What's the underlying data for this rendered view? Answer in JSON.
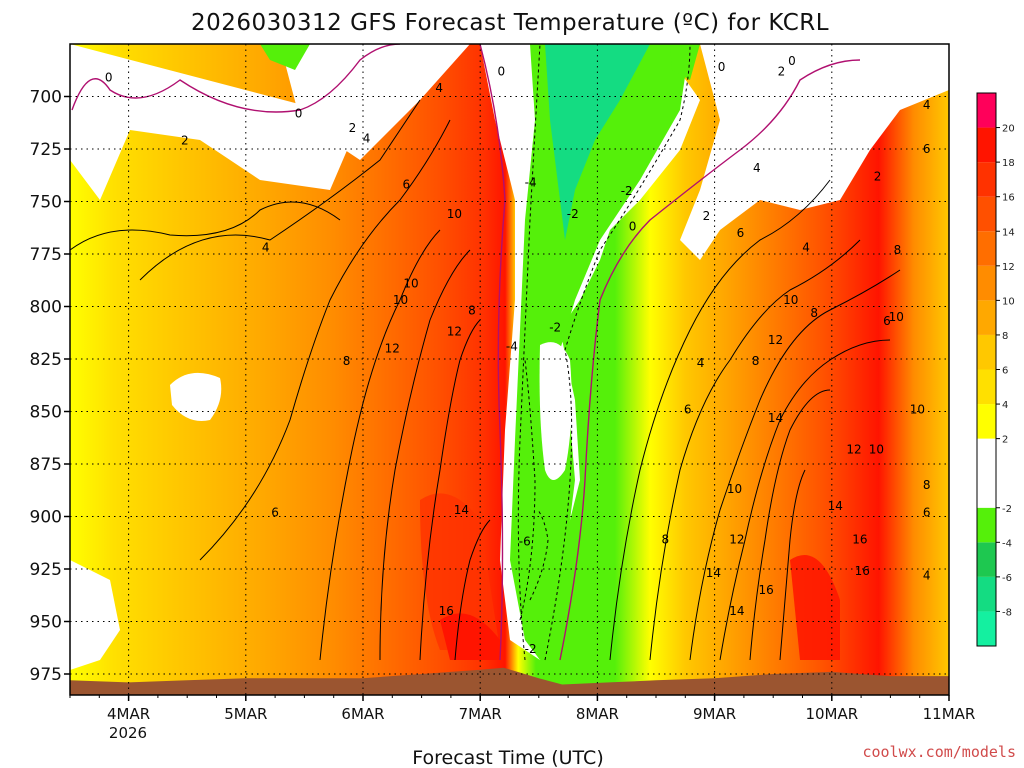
{
  "chart_data": {
    "type": "heatmap",
    "title": "2026030312 GFS Forecast Temperature (ºC) for KCRL",
    "xlabel": "Forecast Time (UTC)",
    "ylabel": "",
    "credit": "coolwx.com/models",
    "y_axis": {
      "units": "hPa",
      "range": [
        675,
        985
      ],
      "ticks": [
        "700",
        "725",
        "750",
        "775",
        "800",
        "825",
        "850",
        "875",
        "900",
        "925",
        "950",
        "975"
      ]
    },
    "x_axis": {
      "units": "days from 2026-03-03 12Z",
      "range": [
        0,
        7.5
      ],
      "ticks": [
        "4MAR",
        "5MAR",
        "6MAR",
        "7MAR",
        "8MAR",
        "9MAR",
        "10MAR",
        "11MAR"
      ],
      "tick_days": [
        0.5,
        1.5,
        2.5,
        3.5,
        4.5,
        5.5,
        6.5,
        7.5
      ],
      "year_label": "2026"
    },
    "colorbar": {
      "units": "ºC",
      "levels": [
        -10,
        -8,
        -6,
        -4,
        -2,
        2,
        4,
        6,
        8,
        10,
        12,
        14,
        16,
        18,
        20,
        22
      ],
      "tick_labels": [
        "20",
        "18",
        "16",
        "14",
        "12",
        "10",
        "8",
        "6",
        "4",
        "2",
        "-2",
        "-4",
        "-6",
        "-8"
      ],
      "tick_values": [
        20,
        18,
        16,
        14,
        12,
        10,
        8,
        6,
        4,
        2,
        -2,
        -4,
        -6,
        -8
      ],
      "colors": [
        "#14f0a0",
        "#14dc82",
        "#1ec850",
        "#55f00a",
        "#ffffff",
        "#ffff00",
        "#ffe000",
        "#ffc800",
        "#ffa800",
        "#ff8c00",
        "#ff6e00",
        "#ff5000",
        "#ff3200",
        "#ff1400",
        "#ff005a"
      ]
    },
    "terrain_color": "#9b5530",
    "contour_labels": [
      {
        "t": 0.33,
        "p": 691,
        "v": "0"
      },
      {
        "t": 1.95,
        "p": 708,
        "v": "0"
      },
      {
        "t": 3.68,
        "p": 688,
        "v": "0"
      },
      {
        "t": 5.56,
        "p": 686,
        "v": "0"
      },
      {
        "t": 6.16,
        "p": 683,
        "v": "0"
      },
      {
        "t": 4.8,
        "p": 762,
        "v": "0"
      },
      {
        "t": 0.98,
        "p": 721,
        "v": "2"
      },
      {
        "t": 2.41,
        "p": 715,
        "v": "2"
      },
      {
        "t": 6.07,
        "p": 688,
        "v": "2"
      },
      {
        "t": 5.43,
        "p": 757,
        "v": "2"
      },
      {
        "t": 6.89,
        "p": 738,
        "v": "2"
      },
      {
        "t": 4.14,
        "p": 810,
        "v": "-2"
      },
      {
        "t": 4.29,
        "p": 756,
        "v": "-2"
      },
      {
        "t": 4.75,
        "p": 745,
        "v": "-2"
      },
      {
        "t": 3.93,
        "p": 963,
        "v": "-2"
      },
      {
        "t": 3.93,
        "p": 741,
        "v": "-4"
      },
      {
        "t": 3.77,
        "p": 819,
        "v": "-4"
      },
      {
        "t": 3.88,
        "p": 912,
        "v": "-6"
      },
      {
        "t": 3.15,
        "p": 696,
        "v": "4"
      },
      {
        "t": 2.53,
        "p": 720,
        "v": "4"
      },
      {
        "t": 1.67,
        "p": 772,
        "v": "4"
      },
      {
        "t": 5.86,
        "p": 734,
        "v": "4"
      },
      {
        "t": 6.28,
        "p": 772,
        "v": "4"
      },
      {
        "t": 5.38,
        "p": 827,
        "v": "4"
      },
      {
        "t": 7.31,
        "p": 704,
        "v": "4"
      },
      {
        "t": 7.31,
        "p": 928,
        "v": "4"
      },
      {
        "t": 2.87,
        "p": 742,
        "v": "6"
      },
      {
        "t": 5.72,
        "p": 765,
        "v": "6"
      },
      {
        "t": 7.31,
        "p": 725,
        "v": "6"
      },
      {
        "t": 5.27,
        "p": 849,
        "v": "6"
      },
      {
        "t": 1.75,
        "p": 898,
        "v": "6"
      },
      {
        "t": 7.31,
        "p": 898,
        "v": "6"
      },
      {
        "t": 3.28,
        "p": 756,
        "v": "10"
      },
      {
        "t": 2.91,
        "p": 789,
        "v": "10"
      },
      {
        "t": 2.82,
        "p": 797,
        "v": "10"
      },
      {
        "t": 6.15,
        "p": 797,
        "v": "10"
      },
      {
        "t": 7.05,
        "p": 805,
        "v": "10"
      },
      {
        "t": 5.67,
        "p": 887,
        "v": "10"
      },
      {
        "t": 6.88,
        "p": 868,
        "v": "10"
      },
      {
        "t": 7.23,
        "p": 849,
        "v": "10"
      },
      {
        "t": 3.43,
        "p": 802,
        "v": "8"
      },
      {
        "t": 6.35,
        "p": 803,
        "v": "8"
      },
      {
        "t": 7.06,
        "p": 773,
        "v": "8"
      },
      {
        "t": 2.36,
        "p": 826,
        "v": "8"
      },
      {
        "t": 5.85,
        "p": 826,
        "v": "8"
      },
      {
        "t": 7.31,
        "p": 885,
        "v": "8"
      },
      {
        "t": 5.08,
        "p": 911,
        "v": "8"
      },
      {
        "t": 3.28,
        "p": 812,
        "v": "12"
      },
      {
        "t": 2.75,
        "p": 820,
        "v": "12"
      },
      {
        "t": 6.02,
        "p": 816,
        "v": "12"
      },
      {
        "t": 6.69,
        "p": 868,
        "v": "12"
      },
      {
        "t": 5.69,
        "p": 911,
        "v": "12"
      },
      {
        "t": 3.34,
        "p": 897,
        "v": "14"
      },
      {
        "t": 6.02,
        "p": 853,
        "v": "14"
      },
      {
        "t": 5.49,
        "p": 927,
        "v": "14"
      },
      {
        "t": 5.69,
        "p": 945,
        "v": "14"
      },
      {
        "t": 6.53,
        "p": 895,
        "v": "14"
      },
      {
        "t": 3.21,
        "p": 945,
        "v": "16"
      },
      {
        "t": 5.94,
        "p": 935,
        "v": "16"
      },
      {
        "t": 6.74,
        "p": 911,
        "v": "16"
      },
      {
        "t": 6.76,
        "p": 926,
        "v": "16"
      },
      {
        "t": 6.97,
        "p": 807,
        "v": "6"
      }
    ]
  }
}
